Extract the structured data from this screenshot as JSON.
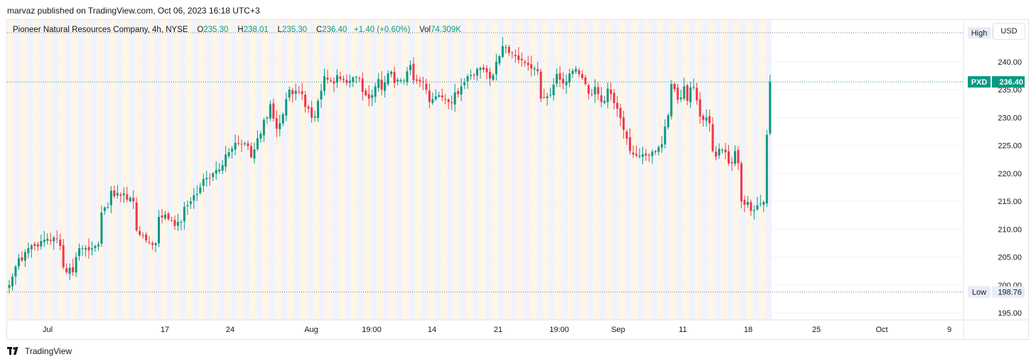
{
  "publisher_line": "marvaz published on TradingView.com, Oct 06, 2023 16:18 UTC+3",
  "brand": "TradingView",
  "brand_icon": "tradingview-logo-icon",
  "currency": "USD",
  "legend": {
    "symbol_desc": "Pioneer Natural Resources Company, 4h, NYSE",
    "o_label": "O",
    "o": "235.30",
    "h_label": "H",
    "h": "238.01",
    "l_label": "L",
    "l": "235.30",
    "c_label": "C",
    "c": "236.40",
    "change": "+1.40 (+0.60%)",
    "vol_label": "Vol",
    "vol": "74.309K"
  },
  "colors": {
    "up": "#089981",
    "down": "#f23645",
    "band_warm": "#fff3e0",
    "band_cool": "#eef1fb",
    "grid": "#f0f3fa",
    "price_badge": "#089981"
  },
  "chart_data": {
    "type": "candlestick",
    "symbol": "PXD",
    "timeframe": "4h",
    "exchange": "NYSE",
    "ylim": [
      193.5,
      247.5
    ],
    "y_ticks": [
      "195.00",
      "200.00",
      "205.00",
      "210.00",
      "215.00",
      "220.00",
      "225.00",
      "230.00",
      "235.00",
      "240.00"
    ],
    "y_tick_values": [
      195,
      200,
      205,
      210,
      215,
      220,
      225,
      230,
      235,
      240
    ],
    "x_ticks": [
      "Jul",
      "17",
      "24",
      "Aug",
      "19:00",
      "14",
      "21",
      "19:00",
      "Sep",
      "11",
      "18",
      "25",
      "Oct",
      "9"
    ],
    "markers": {
      "high": {
        "label": "High",
        "value": 245.2
      },
      "low": {
        "label": "Low",
        "value": 198.76
      },
      "last": {
        "label": "PXD",
        "value": 236.4
      }
    },
    "closes": [
      200.0,
      201.5,
      203.3,
      204.8,
      204.4,
      205.9,
      206.6,
      207.1,
      207.0,
      206.9,
      207.9,
      208.1,
      208.3,
      207.9,
      208.5,
      208.3,
      207.0,
      203.2,
      202.3,
      203.1,
      202.3,
      205.0,
      206.6,
      206.6,
      206.6,
      206.2,
      206.6,
      207.0,
      207.3,
      213.0,
      213.9,
      214.0,
      216.9,
      215.9,
      216.5,
      216.0,
      216.4,
      215.3,
      215.6,
      215.0,
      209.8,
      209.0,
      208.9,
      208.0,
      207.6,
      207.2,
      207.5,
      212.2,
      212.1,
      212.6,
      211.8,
      211.6,
      210.6,
      211.3,
      211.3,
      214.0,
      214.3,
      215.0,
      216.1,
      216.3,
      217.5,
      219.0,
      219.2,
      219.2,
      220.0,
      220.6,
      220.7,
      221.5,
      223.4,
      223.8,
      224.4,
      225.5,
      225.4,
      225.3,
      225.4,
      224.9,
      222.9,
      224.3,
      226.3,
      227.1,
      229.6,
      230.0,
      232.4,
      229.8,
      228.0,
      229.0,
      230.6,
      233.3,
      235.0,
      234.2,
      234.8,
      234.6,
      234.2,
      231.9,
      231.6,
      230.0,
      230.2,
      233.0,
      234.8,
      237.4,
      236.8,
      236.6,
      236.1,
      237.6,
      236.9,
      236.7,
      236.2,
      236.6,
      237.2,
      237.3,
      237.0,
      234.6,
      234.0,
      233.4,
      234.0,
      235.6,
      236.9,
      235.0,
      236.3,
      237.9,
      238.2,
      236.2,
      236.8,
      236.7,
      236.6,
      238.3,
      239.4,
      236.7,
      236.6,
      236.5,
      236.3,
      235.0,
      232.8,
      233.3,
      233.8,
      234.0,
      233.6,
      233.2,
      232.8,
      232.6,
      234.5,
      234.2,
      235.6,
      236.3,
      237.4,
      237.6,
      237.6,
      238.7,
      238.9,
      238.6,
      238.1,
      237.0,
      237.6,
      240.0,
      241.0,
      242.8,
      242.6,
      241.6,
      241.5,
      241.0,
      240.3,
      240.3,
      239.8,
      239.4,
      238.8,
      238.8,
      238.3,
      233.4,
      233.6,
      233.8,
      234.1,
      235.9,
      237.8,
      236.8,
      236.1,
      236.5,
      237.9,
      238.4,
      238.7,
      237.8,
      237.1,
      236.0,
      234.3,
      234.1,
      235.5,
      234.2,
      232.8,
      233.0,
      235.2,
      234.2,
      232.6,
      231.6,
      229.9,
      227.8,
      226.2,
      224.0,
      223.4,
      223.2,
      223.2,
      223.4,
      223.2,
      223.3,
      223.9,
      223.8,
      224.7,
      225.2,
      228.4,
      230.4,
      236.0,
      235.1,
      233.2,
      233.6,
      235.6,
      233.0,
      235.4,
      235.5,
      233.1,
      230.2,
      229.6,
      230.0,
      229.0,
      224.0,
      223.0,
      224.4,
      224.2,
      223.8,
      221.8,
      221.8,
      224.0,
      221.8,
      215.0,
      214.4,
      214.9,
      213.3,
      213.4,
      214.3,
      214.6,
      214.9,
      226.9,
      236.4
    ]
  }
}
